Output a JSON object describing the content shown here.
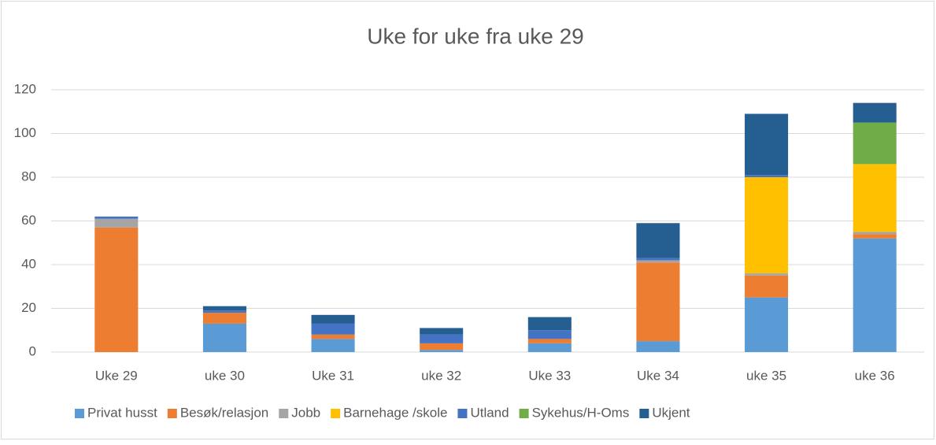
{
  "chart_data": {
    "type": "stacked_bar",
    "title": "Uke for uke fra uke 29",
    "categories": [
      "Uke 29",
      "uke 30",
      "Uke 31",
      "uke 32",
      "Uke 33",
      "Uke 34",
      "uke 35",
      "uke 36"
    ],
    "series": [
      {
        "name": "Privat husst",
        "color": "#5b9bd5",
        "values": [
          0,
          13,
          6,
          1,
          4,
          5,
          25,
          52
        ]
      },
      {
        "name": "Besøk/relasjon",
        "color": "#ed7d31",
        "values": [
          57,
          5,
          2,
          3,
          2,
          36,
          10,
          2
        ]
      },
      {
        "name": "Jobb",
        "color": "#a5a5a5",
        "values": [
          4,
          0,
          0,
          0,
          0,
          1,
          1,
          1
        ]
      },
      {
        "name": "Barnehage /skole",
        "color": "#ffc000",
        "values": [
          0,
          0,
          0,
          0,
          0,
          0,
          44,
          31
        ]
      },
      {
        "name": "Utland",
        "color": "#4472c4",
        "values": [
          1,
          1,
          5,
          4,
          4,
          1,
          1,
          0
        ]
      },
      {
        "name": "Sykehus/H-Oms",
        "color": "#70ad47",
        "values": [
          0,
          0,
          0,
          0,
          0,
          0,
          0,
          19
        ]
      },
      {
        "name": "Ukjent",
        "color": "#255e91",
        "values": [
          0,
          2,
          4,
          3,
          6,
          16,
          28,
          9
        ]
      }
    ],
    "ylim": [
      0,
      120
    ],
    "yticks": [
      0,
      20,
      40,
      60,
      80,
      100,
      120
    ],
    "grid": true,
    "legend": "bottom"
  }
}
